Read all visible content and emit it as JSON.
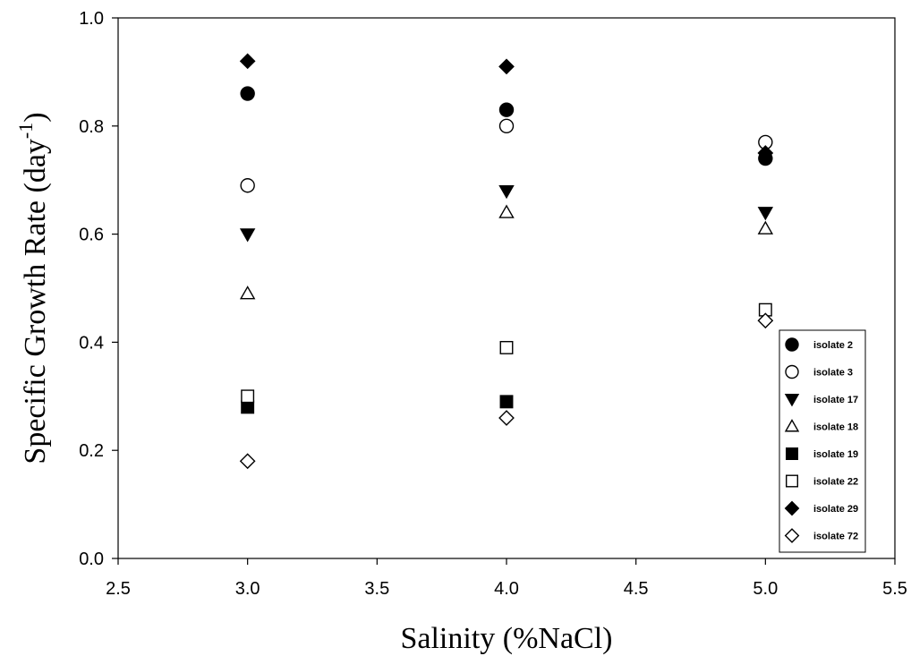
{
  "chart_data": {
    "type": "scatter",
    "title": "",
    "xlabel": "Salinity (%NaCl)",
    "ylabel": {
      "text": "Specific Growth Rate (day",
      "superscript": "-1",
      "closing": ")"
    },
    "xlim": [
      2.5,
      5.5
    ],
    "ylim": [
      0.0,
      1.0
    ],
    "xticks": [
      2.5,
      3.0,
      3.5,
      4.0,
      4.5,
      5.0,
      5.5
    ],
    "xtick_labels": [
      "2.5",
      "3.0",
      "3.5",
      "4.0",
      "4.5",
      "5.0",
      "5.5"
    ],
    "yticks": [
      0.0,
      0.2,
      0.4,
      0.6,
      0.8,
      1.0
    ],
    "ytick_labels": [
      "0.0",
      "0.2",
      "0.4",
      "0.6",
      "0.8",
      "1.0"
    ],
    "grid": false,
    "legend_position": "bottom-right",
    "x": [
      3.0,
      4.0,
      5.0
    ],
    "series": [
      {
        "name": "isolate 2",
        "marker": "circle",
        "filled": true,
        "values": [
          0.86,
          0.83,
          0.74
        ]
      },
      {
        "name": "isolate 3",
        "marker": "circle",
        "filled": false,
        "values": [
          0.69,
          0.8,
          0.77
        ]
      },
      {
        "name": "isolate 17",
        "marker": "triangle-down",
        "filled": true,
        "values": [
          0.6,
          0.68,
          0.64
        ]
      },
      {
        "name": "isolate 18",
        "marker": "triangle-up",
        "filled": false,
        "values": [
          0.49,
          0.64,
          0.61
        ]
      },
      {
        "name": "isolate 19",
        "marker": "square",
        "filled": true,
        "values": [
          0.28,
          0.29,
          null
        ]
      },
      {
        "name": "isolate 22",
        "marker": "square",
        "filled": false,
        "values": [
          0.3,
          0.39,
          0.46
        ]
      },
      {
        "name": "isolate 29",
        "marker": "diamond",
        "filled": true,
        "values": [
          0.92,
          0.91,
          0.75
        ]
      },
      {
        "name": "isolate 72",
        "marker": "diamond",
        "filled": false,
        "values": [
          0.18,
          0.26,
          0.44
        ]
      }
    ]
  }
}
